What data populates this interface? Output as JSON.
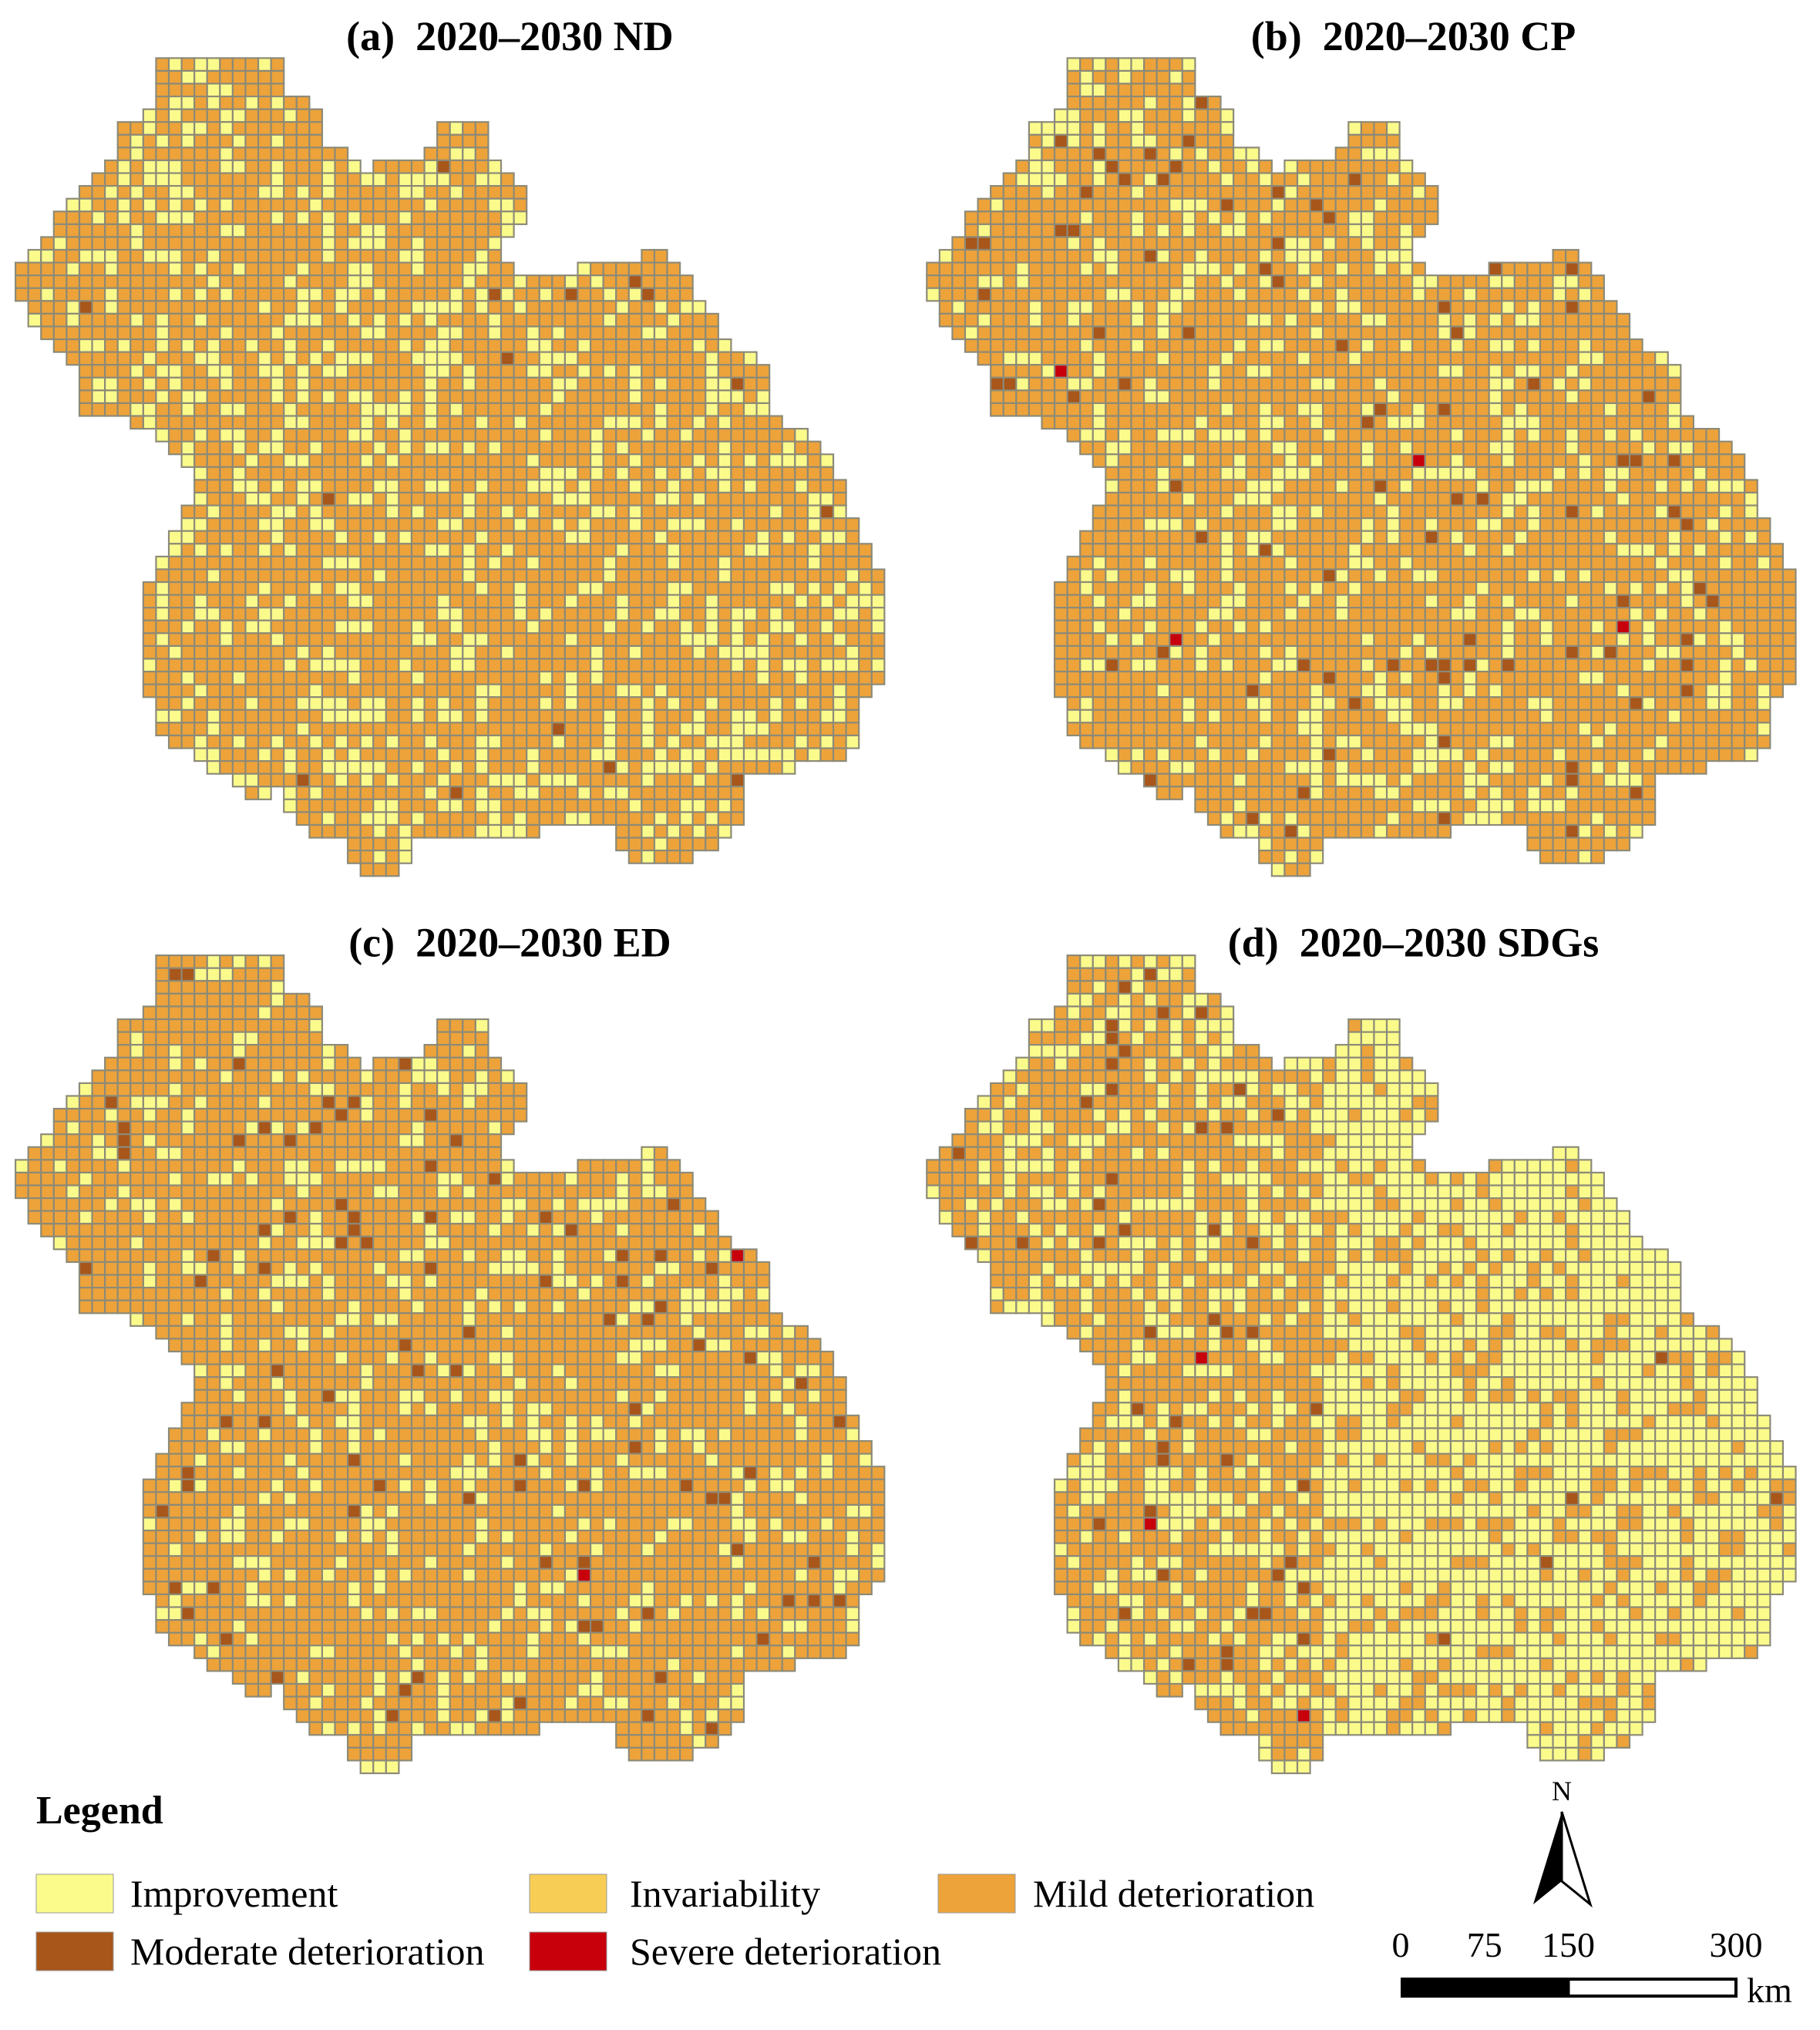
{
  "panels": [
    {
      "title": "(a)  2020–2030 ND"
    },
    {
      "title": "(b)  2020–2030 CP"
    },
    {
      "title": "(c)  2020–2030 ED"
    },
    {
      "title": "(d)  2020–2030 SDGs"
    }
  ],
  "legend": {
    "title": "Legend",
    "items": [
      {
        "label": "Improvement",
        "color": "#fbfb8c"
      },
      {
        "label": "Invariability",
        "color": "#f8cd55"
      },
      {
        "label": "Mild deterioration",
        "color": "#eda33a"
      },
      {
        "label": "Moderate deterioration",
        "color": "#a8561a"
      },
      {
        "label": "Severe deterioration",
        "color": "#c8000c"
      }
    ]
  },
  "north": "N",
  "scale_bar": {
    "ticks": [
      0,
      75,
      150,
      300
    ],
    "unit": "km"
  }
}
